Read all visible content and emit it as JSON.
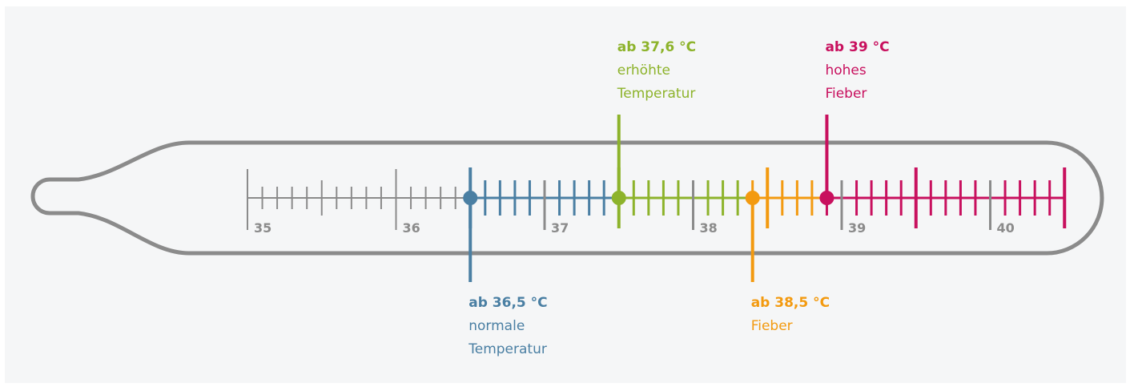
{
  "scale": {
    "min": 35,
    "max": 40.5,
    "step": 0.1,
    "major_labels": [
      "35",
      "36",
      "37",
      "38",
      "39",
      "40"
    ]
  },
  "ranges": [
    {
      "from": 35.0,
      "to": 36.5,
      "color": "#8b8b8b"
    },
    {
      "from": 36.5,
      "to": 37.5,
      "color": "#4a7fa3"
    },
    {
      "from": 37.5,
      "to": 38.4,
      "color": "#8db32b"
    },
    {
      "from": 38.4,
      "to": 38.9,
      "color": "#f39a10"
    },
    {
      "from": 38.9,
      "to": 40.5,
      "color": "#c8105e"
    }
  ],
  "markers": [
    {
      "id": "normal",
      "value": 36.5,
      "color": "#4a7fa3",
      "position": "below",
      "label_bold": "ab 36,5 °C",
      "label_lines": [
        "normale",
        "Temperatur"
      ]
    },
    {
      "id": "elevated",
      "value": 37.5,
      "color": "#8db32b",
      "position": "above",
      "label_bold": "ab 37,6 °C",
      "label_lines": [
        "erhöhte",
        "Temperatur"
      ]
    },
    {
      "id": "fever",
      "value": 38.4,
      "color": "#f39a10",
      "position": "below",
      "label_bold": "ab 38,5 °C",
      "label_lines": [
        "Fieber"
      ]
    },
    {
      "id": "high",
      "value": 38.9,
      "color": "#c8105e",
      "position": "above",
      "label_bold": "ab 39 °C",
      "label_lines": [
        "hohes",
        "Fieber"
      ]
    }
  ],
  "colors": {
    "background": "#f5f6f7",
    "outline": "#8b8b8b",
    "axis": "#8b8b8b"
  }
}
